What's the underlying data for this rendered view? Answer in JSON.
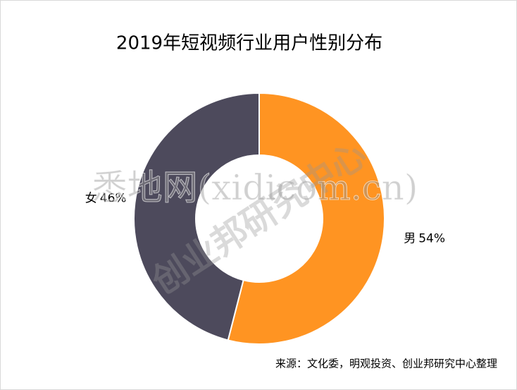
{
  "chart_data": {
    "type": "donut",
    "title": "2019年短视频行业用户性别分布",
    "categories": [
      "男",
      "女"
    ],
    "values": [
      54,
      46
    ],
    "value_labels": [
      "54%",
      "46%"
    ],
    "colors": [
      "#FF9422",
      "#4D4A5C"
    ],
    "source": "来源：文化委，明观投资、创业邦研究中心整理",
    "watermarks": [
      "悉地网(xidicom.cn)",
      "创业邦研究中心"
    ]
  }
}
